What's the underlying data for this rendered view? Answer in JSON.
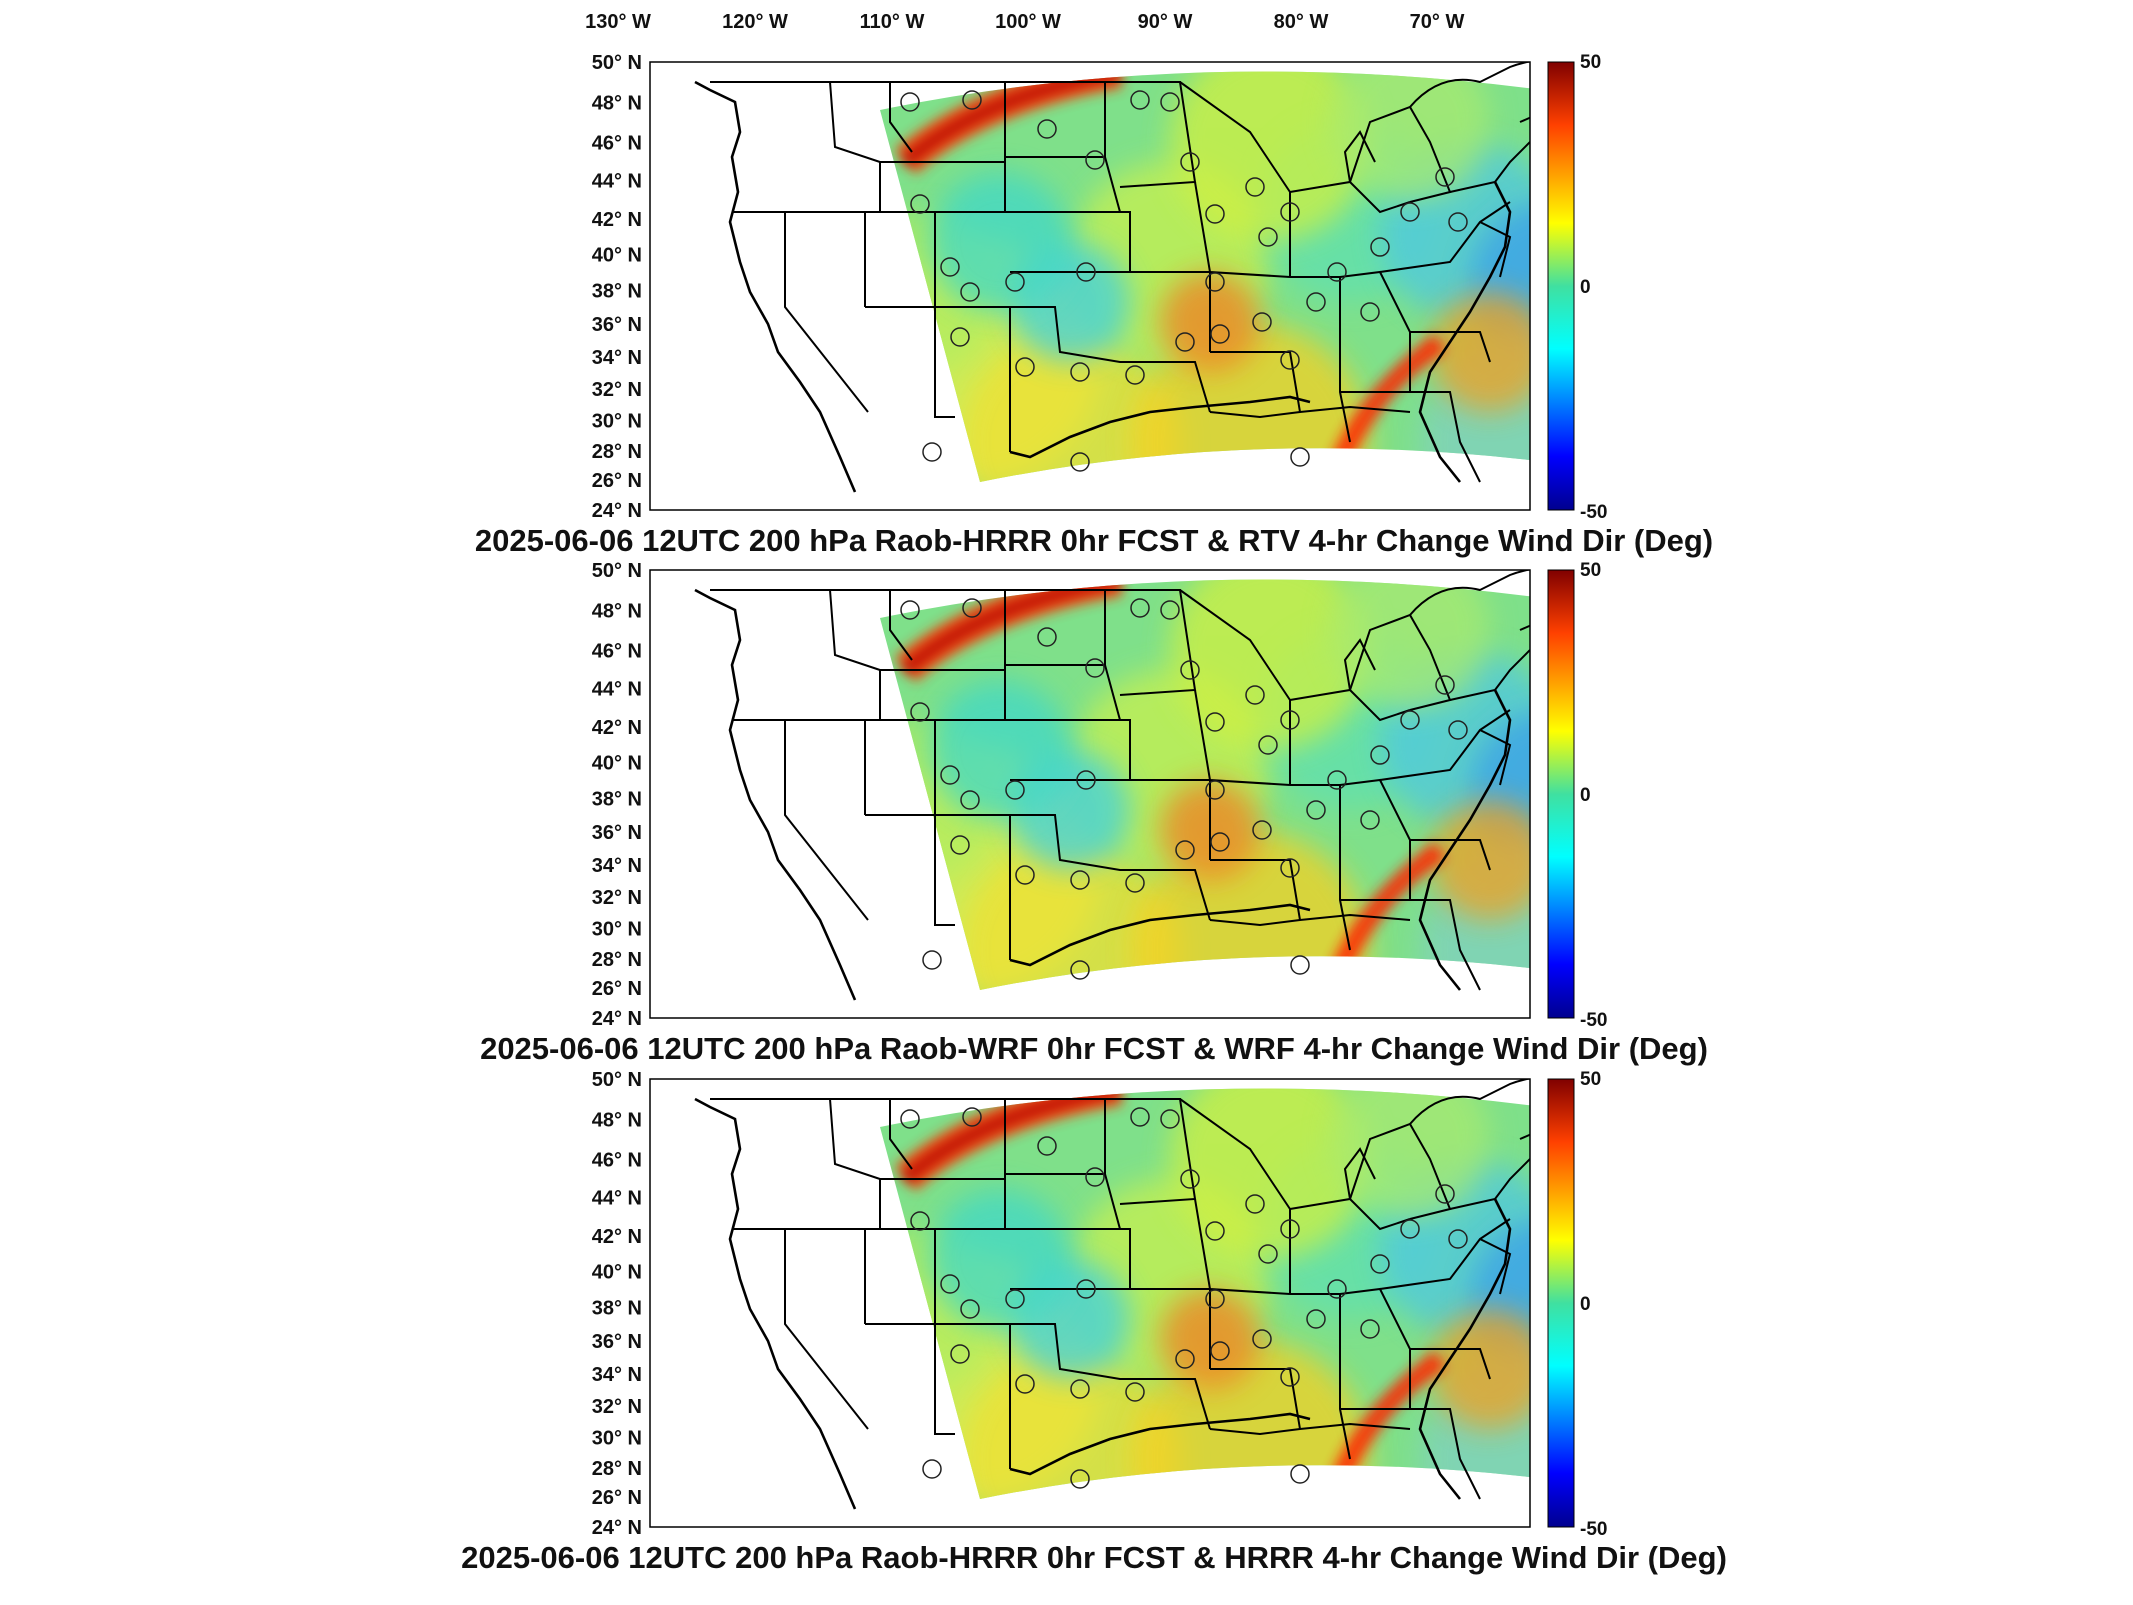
{
  "lon_labels": [
    "130° W",
    "120° W",
    "110° W",
    "100° W",
    "90° W",
    "80° W",
    "70° W"
  ],
  "lat_labels": [
    "50° N",
    "48° N",
    "46° N",
    "44° N",
    "42° N",
    "40° N",
    "38° N",
    "36° N",
    "34° N",
    "32° N",
    "30° N",
    "28° N",
    "26° N",
    "24° N"
  ],
  "panels": [
    {
      "title": "2025-06-06 12UTC 200 hPa Raob-HRRR 0hr FCST & RTV 4-hr Change Wind Dir (Deg)",
      "colorbar": {
        "max": "50",
        "mid": "0",
        "min": "-50"
      }
    },
    {
      "title": "2025-06-06 12UTC 200 hPa Raob-WRF 0hr FCST & WRF 4-hr Change Wind Dir (Deg)",
      "colorbar": {
        "max": "50",
        "mid": "0",
        "min": "-50"
      }
    },
    {
      "title": "2025-06-06 12UTC 200 hPa Raob-HRRR 0hr FCST & HRRR 4-hr Change Wind Dir (Deg)",
      "colorbar": {
        "max": "50",
        "mid": "0",
        "min": "-50"
      }
    }
  ],
  "colors": {
    "colormap": [
      "#00008f",
      "#0000ff",
      "#00ffff",
      "#00e0a0",
      "#ffff00",
      "#ff8000",
      "#ff0000",
      "#800000"
    ],
    "field_base": "#80e080",
    "coast": "#000000"
  }
}
